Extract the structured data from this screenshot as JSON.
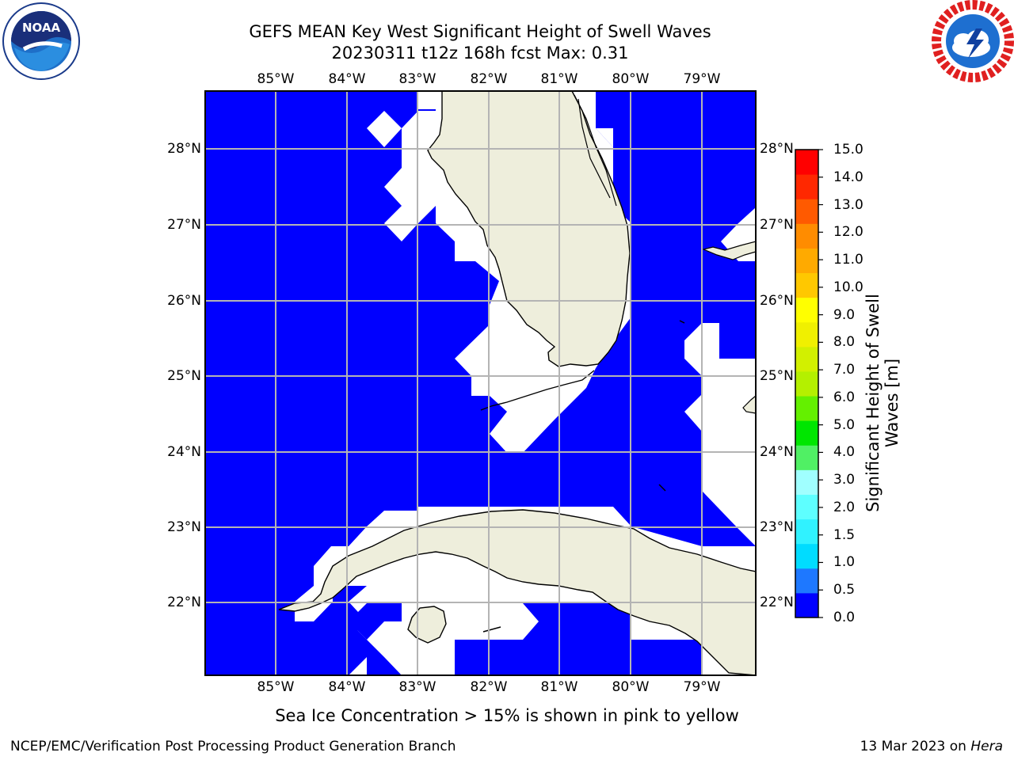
{
  "title_line1": "GEFS MEAN Key West Significant Height of Swell Waves",
  "title_line2": "20230311 t12z 168h fcst   Max: 0.31",
  "lon_labels": [
    "85°W",
    "84°W",
    "83°W",
    "82°W",
    "81°W",
    "80°W",
    "79°W"
  ],
  "lat_labels": [
    "28°N",
    "27°N",
    "26°N",
    "25°N",
    "24°N",
    "23°N",
    "22°N"
  ],
  "colorbar": {
    "title_line1": "Significant Height of Swell",
    "title_line2": "Waves [m]",
    "tick_labels": [
      "15.0",
      "14.0",
      "13.0",
      "12.0",
      "11.0",
      "10.0",
      "9.0",
      "8.0",
      "7.0",
      "6.0",
      "5.0",
      "4.0",
      "3.0",
      "2.0",
      "1.5",
      "1.0",
      "0.5",
      "0.0"
    ],
    "colors": [
      "#0000ff",
      "#1e78ff",
      "#00dcff",
      "#30f2ff",
      "#5effff",
      "#a0ffff",
      "#50f064",
      "#00e600",
      "#64f000",
      "#b4f000",
      "#d2f000",
      "#f0f000",
      "#ffff00",
      "#ffc800",
      "#ffaa00",
      "#ff8c00",
      "#ff5a00",
      "#ff2800",
      "#ff0000"
    ]
  },
  "sea_ice_note": "Sea Ice Concentration > 15% is shown in pink to yellow",
  "footer_left": "NCEP/EMC/Verification Post Processing Product Generation Branch",
  "footer_date": "13 Mar 2023 on ",
  "footer_host": "Hera",
  "colors": {
    "ocean": "#0000ff",
    "land": "#eeeedc",
    "grid": "#b4b4b4"
  }
}
